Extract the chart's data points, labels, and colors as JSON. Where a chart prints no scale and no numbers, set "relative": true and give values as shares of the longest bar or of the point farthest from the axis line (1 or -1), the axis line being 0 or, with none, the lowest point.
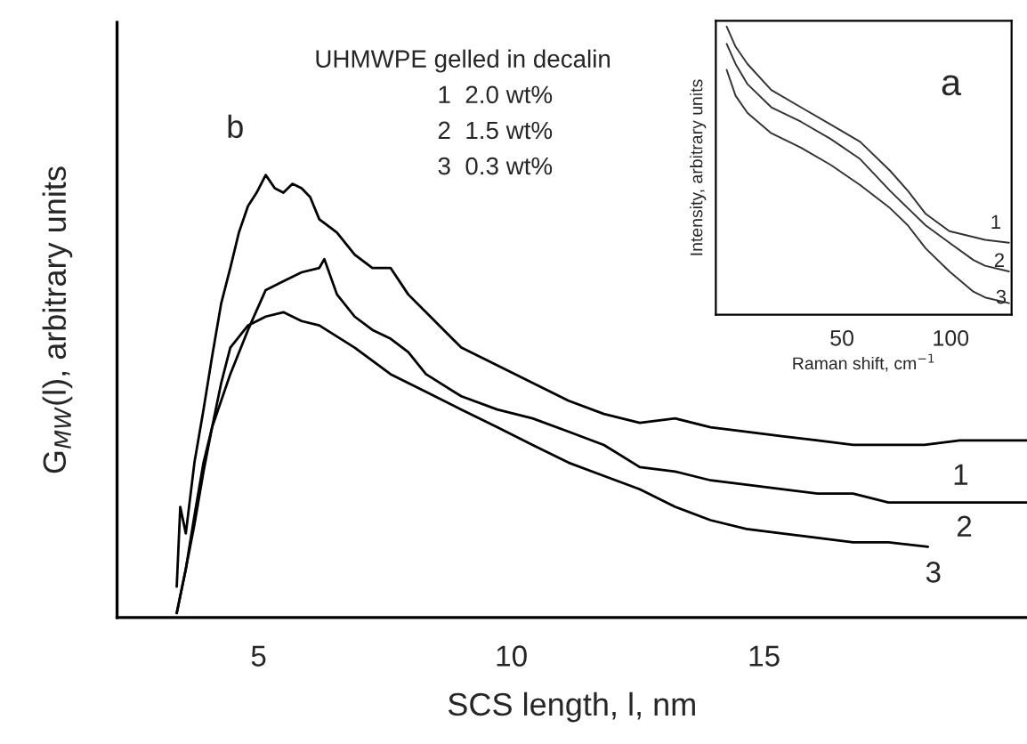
{
  "chart_data": [
    {
      "type": "line",
      "relative": true,
      "xlabel": "SCS length, l, nm",
      "ylabel": "G$_{MW}$(l), arbitrary units",
      "xlim": [
        2.2,
        20.2
      ],
      "xticks": [
        5,
        10,
        15
      ],
      "grid": false,
      "tick_labels": "x",
      "annotations": [
        "b",
        "UHMWPE gelled in decalin",
        "1  2.0 wt%",
        "2  1.5 wt%",
        "3  0.3 wt%",
        "1",
        "2",
        "3"
      ],
      "series": [
        {
          "color": "#000000",
          "x": [
            3.38,
            3.45,
            3.56,
            3.73,
            3.91,
            4.08,
            4.26,
            4.44,
            4.61,
            4.79,
            4.96,
            5.14,
            5.32,
            5.49,
            5.67,
            5.85,
            6.02,
            6.2,
            6.55,
            6.9,
            7.25,
            7.61,
            7.96,
            8.31,
            9.01,
            9.72,
            10.42,
            11.13,
            11.83,
            12.54,
            13.24,
            13.94,
            14.65,
            15.35,
            16.06,
            16.76,
            17.46,
            18.17,
            18.87,
            20.2
          ],
          "values": [
            0.07,
            0.25,
            0.19,
            0.35,
            0.47,
            0.59,
            0.71,
            0.79,
            0.87,
            0.93,
            0.96,
            1.0,
            0.97,
            0.96,
            0.98,
            0.97,
            0.95,
            0.9,
            0.87,
            0.82,
            0.79,
            0.79,
            0.73,
            0.69,
            0.61,
            0.57,
            0.53,
            0.49,
            0.46,
            0.44,
            0.45,
            0.43,
            0.42,
            0.41,
            0.4,
            0.39,
            0.39,
            0.39,
            0.4,
            0.4
          ]
        },
        {
          "color": "#000000",
          "x": [
            3.38,
            3.56,
            3.73,
            3.91,
            4.08,
            4.44,
            4.79,
            5.14,
            5.49,
            5.85,
            6.2,
            6.3,
            6.55,
            6.9,
            7.25,
            7.61,
            7.96,
            8.31,
            9.01,
            9.72,
            10.42,
            11.13,
            11.83,
            12.54,
            13.24,
            13.94,
            14.65,
            15.35,
            16.06,
            16.76,
            17.46,
            18.17,
            18.87,
            20.2
          ],
          "values": [
            0.01,
            0.11,
            0.23,
            0.35,
            0.43,
            0.55,
            0.65,
            0.74,
            0.76,
            0.78,
            0.79,
            0.81,
            0.73,
            0.68,
            0.65,
            0.63,
            0.6,
            0.55,
            0.5,
            0.47,
            0.45,
            0.42,
            0.39,
            0.34,
            0.33,
            0.31,
            0.3,
            0.29,
            0.28,
            0.28,
            0.26,
            0.26,
            0.26,
            0.26
          ]
        },
        {
          "color": "#000000",
          "x": [
            3.38,
            3.56,
            3.73,
            3.91,
            4.08,
            4.26,
            4.44,
            4.79,
            5.14,
            5.49,
            5.85,
            6.2,
            6.9,
            7.61,
            8.31,
            9.01,
            9.72,
            10.42,
            11.13,
            11.83,
            12.54,
            13.24,
            13.94,
            14.65,
            15.35,
            16.06,
            16.76,
            17.46,
            18.24
          ],
          "values": [
            0.01,
            0.11,
            0.21,
            0.33,
            0.43,
            0.53,
            0.61,
            0.66,
            0.68,
            0.69,
            0.67,
            0.66,
            0.61,
            0.55,
            0.51,
            0.47,
            0.43,
            0.39,
            0.35,
            0.32,
            0.29,
            0.25,
            0.22,
            0.2,
            0.19,
            0.18,
            0.17,
            0.17,
            0.16
          ]
        }
      ]
    },
    {
      "type": "line",
      "relative": true,
      "xlabel": "Raman shift, cm$^{−1}$",
      "ylabel": "Intensity, arbitrary units",
      "xlim": [
        -8,
        128
      ],
      "xticks": [
        50,
        100
      ],
      "grid": false,
      "tick_labels": "x",
      "annotations": [
        "a",
        "1",
        "2",
        "3"
      ],
      "series": [
        {
          "color": "#333333",
          "x": [
            -3.0,
            1.1,
            6.6,
            17.5,
            31.1,
            44.8,
            58.4,
            72.1,
            80.3,
            88.5,
            99.4,
            110.4,
            115.8,
            126.8
          ],
          "values": [
            1.0,
            0.93,
            0.87,
            0.78,
            0.72,
            0.66,
            0.6,
            0.5,
            0.43,
            0.35,
            0.29,
            0.27,
            0.26,
            0.25
          ]
        },
        {
          "color": "#333333",
          "x": [
            -3.0,
            1.1,
            6.6,
            17.5,
            31.1,
            44.8,
            58.4,
            72.1,
            80.3,
            88.5,
            99.4,
            110.4,
            115.8,
            126.8
          ],
          "values": [
            0.94,
            0.87,
            0.8,
            0.72,
            0.67,
            0.61,
            0.54,
            0.43,
            0.37,
            0.31,
            0.25,
            0.19,
            0.17,
            0.15
          ]
        },
        {
          "color": "#333333",
          "x": [
            -3.0,
            1.1,
            6.6,
            17.5,
            31.1,
            44.8,
            58.4,
            72.1,
            80.3,
            88.5,
            99.4,
            110.4,
            115.8,
            126.8
          ],
          "values": [
            0.85,
            0.76,
            0.7,
            0.63,
            0.58,
            0.52,
            0.45,
            0.37,
            0.31,
            0.23,
            0.15,
            0.08,
            0.06,
            0.04
          ]
        }
      ]
    }
  ]
}
